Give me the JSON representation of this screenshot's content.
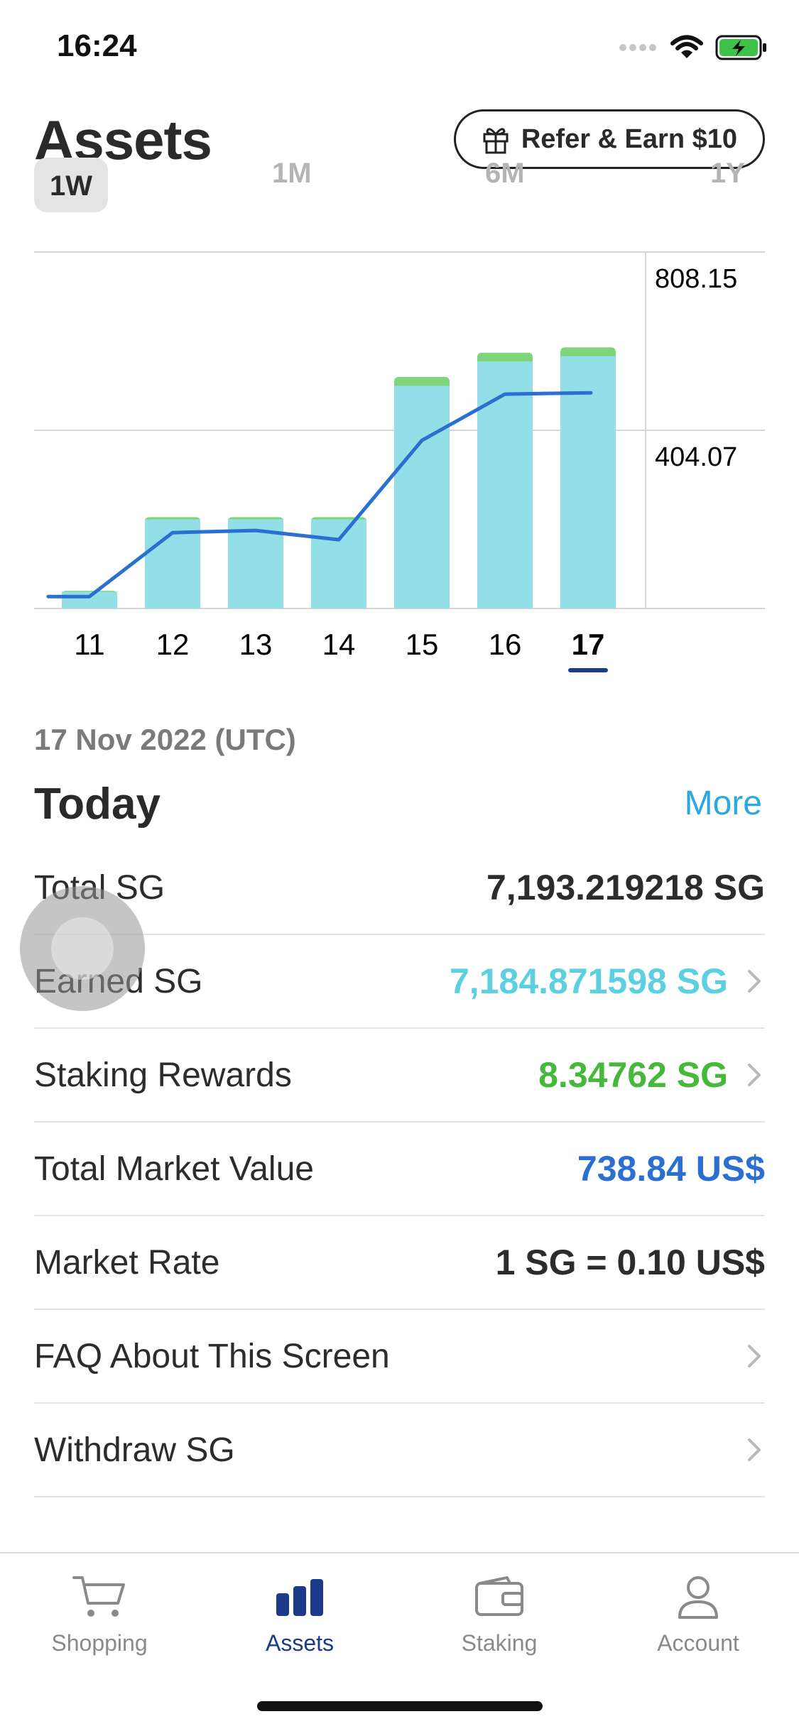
{
  "status_bar": {
    "time": "16:24"
  },
  "header": {
    "title": "Assets",
    "refer_label": "Refer & Earn $10"
  },
  "period_tabs": [
    {
      "label": "1W",
      "active": true
    },
    {
      "label": "1M",
      "active": false
    },
    {
      "label": "6M",
      "active": false
    },
    {
      "label": "1Y",
      "active": false
    }
  ],
  "chart_data": {
    "type": "bar",
    "categories": [
      "11",
      "12",
      "13",
      "14",
      "15",
      "16",
      "17"
    ],
    "selected_category": "17",
    "series": [
      {
        "type": "bar",
        "color": "#93dfe7",
        "values": [
          38,
          202,
          202,
          202,
          505,
          560,
          572
        ]
      },
      {
        "type": "bar",
        "color": "#7fd67a",
        "values": [
          2,
          5,
          5,
          5,
          20,
          20,
          20
        ]
      },
      {
        "type": "line",
        "color": "#2a6fd1",
        "values": [
          27,
          172,
          177,
          156,
          381,
          486,
          489
        ]
      }
    ],
    "y_tick_labels": [
      "808.15",
      "404.07"
    ],
    "ylim": [
      0,
      808.15
    ],
    "grid": true,
    "y_axis_position": "right"
  },
  "summary": {
    "date": "17 Nov 2022 (UTC)",
    "title": "Today",
    "more_label": "More"
  },
  "rows": [
    {
      "label": "Total SG",
      "value": "7,193.219218 SG",
      "color": "#2c2c2c",
      "chevron": false
    },
    {
      "label": "Earned SG",
      "value": "7,184.871598 SG",
      "color": "#5ccfe0",
      "chevron": true
    },
    {
      "label": "Staking Rewards",
      "value": "8.34762 SG",
      "color": "#46b83c",
      "chevron": true
    },
    {
      "label": "Total Market Value",
      "value": "738.84 US$",
      "color": "#2a6fd1",
      "chevron": false
    },
    {
      "label": "Market Rate",
      "value": "1 SG = 0.10 US$",
      "color": "#2c2c2c",
      "chevron": false
    },
    {
      "label": "FAQ About This Screen",
      "value": "",
      "color": "#2c2c2c",
      "chevron": true
    },
    {
      "label": "Withdraw SG",
      "value": "",
      "color": "#2c2c2c",
      "chevron": true
    }
  ],
  "tabbar": [
    {
      "label": "Shopping",
      "icon": "cart-icon",
      "active": false
    },
    {
      "label": "Assets",
      "icon": "bar-chart-icon",
      "active": true
    },
    {
      "label": "Staking",
      "icon": "wallet-icon",
      "active": false
    },
    {
      "label": "Account",
      "icon": "person-icon",
      "active": false
    }
  ]
}
